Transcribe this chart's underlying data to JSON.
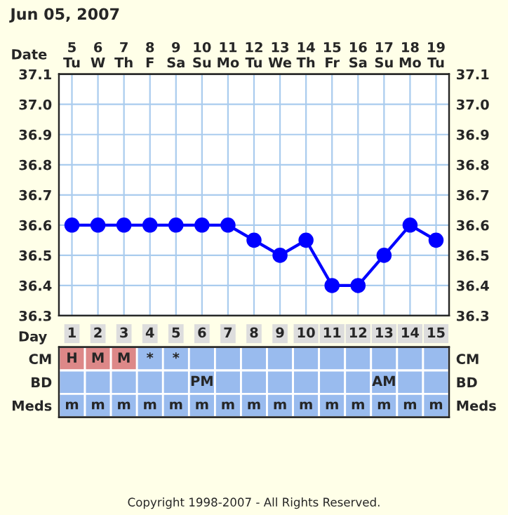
{
  "chart_data": [
    {
      "type": "line",
      "title": "Jun 05, 2007",
      "xlabel": "Date",
      "categories": [
        "5\nTu",
        "6\nW",
        "7\nTh",
        "8\nF",
        "9\nSa",
        "10\nSu",
        "11\nMo",
        "12\nTu",
        "13\nWe",
        "14\nTh",
        "15\nFr",
        "16\nSa",
        "17\nSu",
        "18\nMo",
        "19\nTu"
      ],
      "series": [
        {
          "color": "#0000ff",
          "values": [
            36.6,
            36.6,
            36.6,
            36.6,
            36.6,
            36.6,
            36.6,
            36.55,
            36.5,
            36.55,
            36.4,
            36.4,
            36.5,
            36.6,
            36.55
          ]
        }
      ],
      "ylim": [
        36.3,
        37.1
      ],
      "yticks": [
        36.3,
        36.4,
        36.5,
        36.6,
        36.7,
        36.8,
        36.9,
        {
          "value": 37.0,
          "label": "37.0"
        },
        37.1
      ],
      "y2lim": [
        36.3,
        37.1
      ],
      "y2ticks": [
        36.3,
        36.4,
        36.5,
        36.6,
        36.7,
        36.8,
        36.9,
        {
          "value": 37.0,
          "label": "37.0"
        },
        37.1
      ],
      "grid": true,
      "marker": "circle",
      "line_style": "solid"
    },
    {
      "type": "heatmap",
      "xlabel": "Day",
      "categories": [
        "1",
        "2",
        "3",
        "4",
        "5",
        "6",
        "7",
        "8",
        "9",
        "10",
        "11",
        "12",
        "13",
        "14",
        "15"
      ],
      "y_categories": [
        "CM",
        "BD",
        "Meds"
      ],
      "y2_categories": [
        "CM",
        "BD",
        "Meds"
      ],
      "colors": [
        [
          "#dd8888",
          "#dd8888",
          "#dd8888",
          "#99bbee",
          "#99bbee",
          "#99bbee",
          "#99bbee",
          "#99bbee",
          "#99bbee",
          "#99bbee",
          "#99bbee",
          "#99bbee",
          "#99bbee",
          "#99bbee",
          "#99bbee"
        ],
        [
          "#99bbee",
          "#99bbee",
          "#99bbee",
          "#99bbee",
          "#99bbee",
          "#99bbee",
          "#99bbee",
          "#99bbee",
          "#99bbee",
          "#99bbee",
          "#99bbee",
          "#99bbee",
          "#99bbee",
          "#99bbee",
          "#99bbee"
        ],
        [
          "#99bbee",
          "#99bbee",
          "#99bbee",
          "#99bbee",
          "#99bbee",
          "#99bbee",
          "#99bbee",
          "#99bbee",
          "#99bbee",
          "#99bbee",
          "#99bbee",
          "#99bbee",
          "#99bbee",
          "#99bbee",
          "#99bbee"
        ]
      ],
      "cells": [
        [
          null,
          null,
          null,
          null,
          null,
          null,
          null,
          null,
          null,
          null,
          null,
          null,
          null,
          null,
          null
        ],
        [
          null,
          null,
          null,
          null,
          null,
          null,
          null,
          null,
          null,
          null,
          null,
          null,
          null,
          null,
          null
        ],
        [
          null,
          null,
          null,
          null,
          null,
          null,
          null,
          null,
          null,
          null,
          null,
          null,
          null,
          null,
          null
        ]
      ],
      "cell_labels": [
        [
          "H",
          "M",
          "M",
          "*",
          "*",
          null,
          null,
          null,
          null,
          null,
          null,
          null,
          null,
          null,
          null
        ],
        [
          null,
          null,
          null,
          null,
          null,
          "PM",
          null,
          null,
          null,
          null,
          null,
          null,
          "AM",
          null,
          null
        ],
        [
          "m",
          "m",
          "m",
          "m",
          "m",
          "m",
          "m",
          "m",
          "m",
          "m",
          "m",
          "m",
          "m",
          "m",
          "m"
        ]
      ],
      "annotations": [
        "Copyright 1998-2007 - All Rights Reserved."
      ]
    }
  ]
}
